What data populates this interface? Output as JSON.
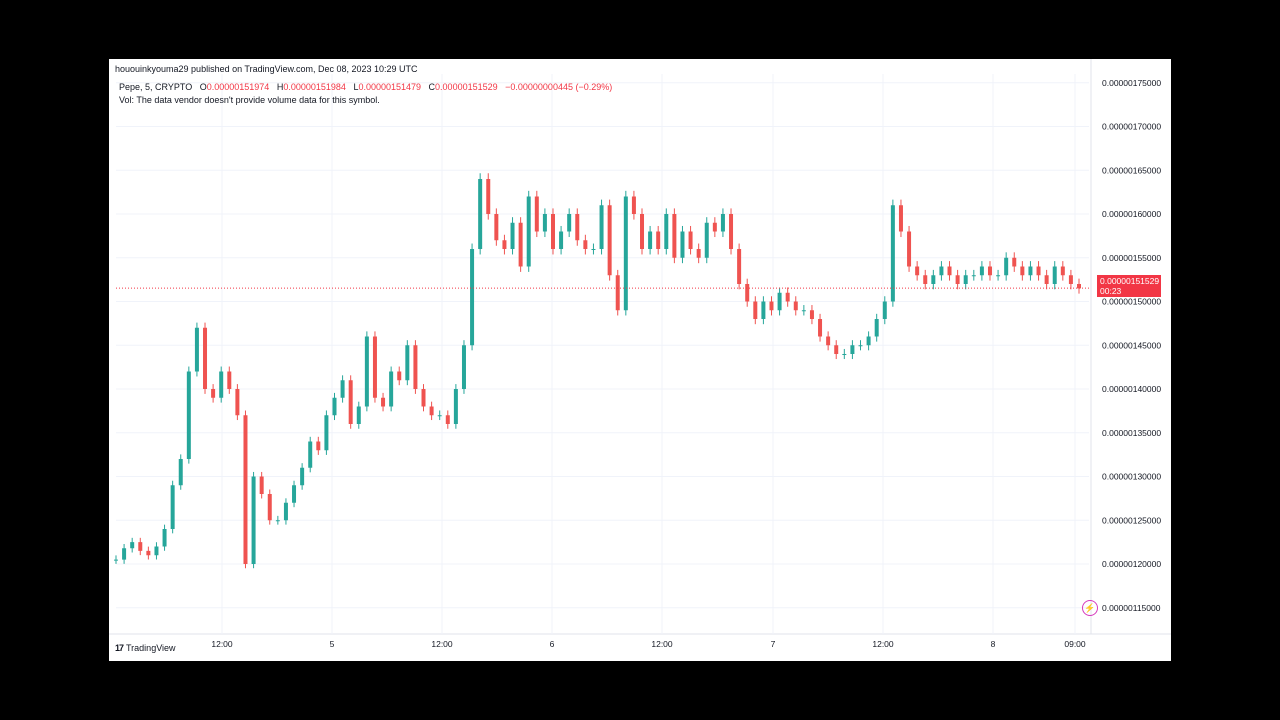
{
  "header": {
    "publish_line": "hououinkyouma29 published on TradingView.com, Dec 08, 2023 10:29 UTC",
    "symbol_label": "Pepe, 5, CRYPTO",
    "o_label": "O",
    "o_value": "0.00000151974",
    "h_label": "H",
    "h_value": "0.00000151984",
    "l_label": "L",
    "l_value": "0.00000151479",
    "c_label": "C",
    "c_value": "0.00000151529",
    "change": "−0.00000000445 (−0.29%)",
    "vol_note": "Vol: The data vendor doesn't provide volume data for this symbol."
  },
  "last_price": {
    "value": "0.00000151529",
    "countdown": "00:23"
  },
  "footer": {
    "brand": "TradingView",
    "logo_text": "17"
  },
  "icons": {
    "snapshot": "lightning-icon"
  },
  "colors": {
    "up": "#26a69a",
    "down": "#ef5350",
    "tag": "#f23645",
    "grid": "#f0f3fa"
  },
  "chart_data": {
    "type": "candlestick",
    "title": "Pepe, 5, CRYPTO",
    "grid": true,
    "y_ticks": [
      "0.00000175000",
      "0.00000170000",
      "0.00000165000",
      "0.00000160000",
      "0.00000155000",
      "0.00000150000",
      "0.00000145000",
      "0.00000140000",
      "0.00000135000",
      "0.00000130000",
      "0.00000125000",
      "0.00000120000",
      "0.00000115000"
    ],
    "x_ticks": [
      "12:00",
      "5",
      "12:00",
      "6",
      "12:00",
      "7",
      "12:00",
      "8",
      "09:00"
    ],
    "ylim": [
      1.12e-06,
      1.76e-06
    ],
    "series": [
      {
        "x": [
          0,
          3,
          6,
          9,
          12,
          15,
          18,
          21,
          24,
          27,
          30,
          33,
          36,
          39,
          42,
          45,
          48,
          51,
          54,
          57,
          60,
          63,
          66,
          69,
          72,
          75,
          78,
          81,
          84,
          87,
          90,
          93,
          96,
          99,
          102,
          105,
          108,
          111,
          114,
          117,
          120,
          123,
          126,
          129,
          132,
          135,
          138,
          141,
          144,
          147,
          150,
          153,
          156,
          159,
          162,
          165,
          168,
          171,
          174,
          177,
          180,
          183,
          186,
          189,
          192,
          195,
          198,
          201,
          204,
          207,
          210,
          213,
          216,
          219,
          222,
          225,
          228,
          231,
          234,
          237,
          240,
          243,
          246,
          249,
          252,
          255,
          258,
          261,
          264,
          267,
          270,
          273,
          276,
          279,
          282,
          285,
          288,
          291,
          294,
          297,
          300,
          303,
          306,
          309,
          312,
          315,
          318,
          321,
          324,
          327,
          330,
          333,
          336,
          339,
          342,
          345,
          348,
          351,
          354,
          357
        ],
        "close": [
          1.205e-06,
          1.218e-06,
          1.225e-06,
          1.215e-06,
          1.21e-06,
          1.22e-06,
          1.24e-06,
          1.29e-06,
          1.32e-06,
          1.42e-06,
          1.47e-06,
          1.4e-06,
          1.39e-06,
          1.42e-06,
          1.4e-06,
          1.37e-06,
          1.2e-06,
          1.3e-06,
          1.28e-06,
          1.25e-06,
          1.25e-06,
          1.27e-06,
          1.29e-06,
          1.31e-06,
          1.34e-06,
          1.33e-06,
          1.37e-06,
          1.39e-06,
          1.41e-06,
          1.36e-06,
          1.38e-06,
          1.46e-06,
          1.39e-06,
          1.38e-06,
          1.42e-06,
          1.41e-06,
          1.45e-06,
          1.4e-06,
          1.38e-06,
          1.37e-06,
          1.37e-06,
          1.36e-06,
          1.4e-06,
          1.45e-06,
          1.56e-06,
          1.64e-06,
          1.6e-06,
          1.57e-06,
          1.56e-06,
          1.59e-06,
          1.54e-06,
          1.62e-06,
          1.58e-06,
          1.6e-06,
          1.56e-06,
          1.58e-06,
          1.6e-06,
          1.57e-06,
          1.56e-06,
          1.56e-06,
          1.61e-06,
          1.53e-06,
          1.49e-06,
          1.62e-06,
          1.6e-06,
          1.56e-06,
          1.58e-06,
          1.56e-06,
          1.6e-06,
          1.55e-06,
          1.58e-06,
          1.56e-06,
          1.55e-06,
          1.59e-06,
          1.58e-06,
          1.6e-06,
          1.56e-06,
          1.52e-06,
          1.5e-06,
          1.48e-06,
          1.5e-06,
          1.49e-06,
          1.51e-06,
          1.5e-06,
          1.49e-06,
          1.49e-06,
          1.48e-06,
          1.46e-06,
          1.45e-06,
          1.44e-06,
          1.44e-06,
          1.45e-06,
          1.45e-06,
          1.46e-06,
          1.48e-06,
          1.5e-06,
          1.61e-06,
          1.58e-06,
          1.54e-06,
          1.53e-06,
          1.52e-06,
          1.53e-06,
          1.54e-06,
          1.53e-06,
          1.52e-06,
          1.53e-06,
          1.53e-06,
          1.54e-06,
          1.53e-06,
          1.53e-06,
          1.55e-06,
          1.54e-06,
          1.53e-06,
          1.54e-06,
          1.53e-06,
          1.52e-06,
          1.54e-06,
          1.53e-06,
          1.52e-06,
          1.515e-06
        ]
      }
    ]
  }
}
